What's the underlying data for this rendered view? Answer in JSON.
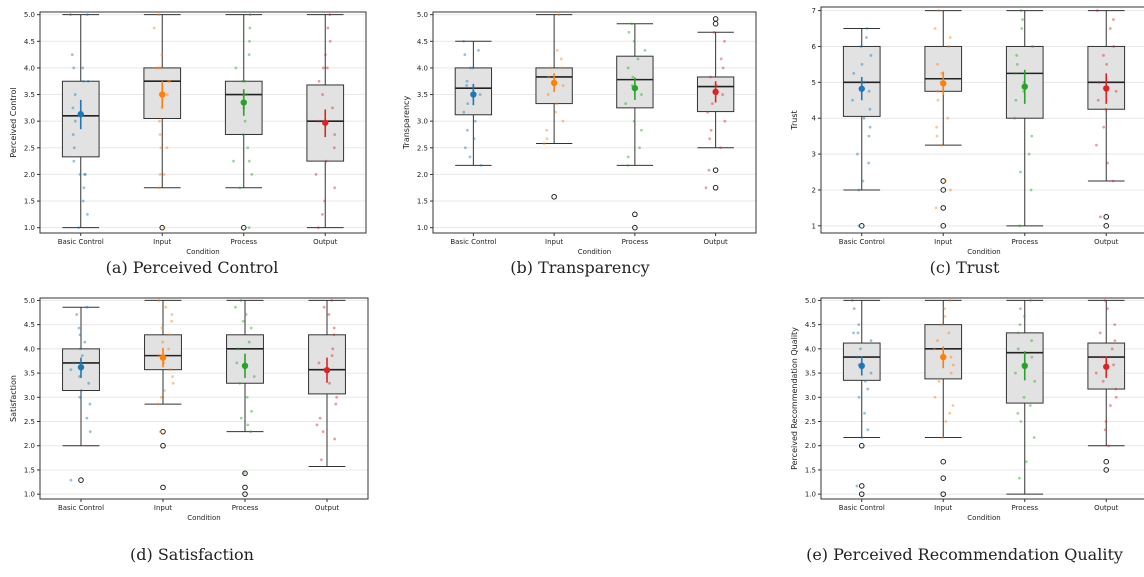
{
  "colors": [
    "#1f77b4",
    "#ff7f0e",
    "#2ca02c",
    "#d62728"
  ],
  "chart_data": [
    {
      "id": "a",
      "type": "box",
      "caption": "(a) Perceived Control",
      "xlabel": "Condition",
      "ylabel": "Perceived Control",
      "ylim": [
        0.9,
        5.05
      ],
      "yticks": [
        "1.0",
        "1.5",
        "2.0",
        "2.5",
        "3.0",
        "3.5",
        "4.0",
        "4.5",
        "5.0"
      ],
      "categories": [
        "Basic Control",
        "Input",
        "Process",
        "Output"
      ],
      "boxes": [
        {
          "min": 1.0,
          "q1": 2.33,
          "median": 3.1,
          "q3": 3.75,
          "max": 5.0,
          "mean": 3.13,
          "ci": [
            2.85,
            3.4
          ],
          "outliers": []
        },
        {
          "min": 1.75,
          "q1": 3.05,
          "median": 3.75,
          "q3": 4.0,
          "max": 5.0,
          "mean": 3.5,
          "ci": [
            3.25,
            3.75
          ],
          "outliers": [
            1.0
          ]
        },
        {
          "min": 1.75,
          "q1": 2.75,
          "median": 3.5,
          "q3": 3.75,
          "max": 5.0,
          "mean": 3.35,
          "ci": [
            3.1,
            3.6
          ],
          "outliers": [
            1.0
          ]
        },
        {
          "min": 1.0,
          "q1": 2.25,
          "median": 3.0,
          "q3": 3.68,
          "max": 5.0,
          "mean": 2.97,
          "ci": [
            2.7,
            3.22
          ],
          "outliers": []
        }
      ],
      "points": [
        [
          5.0,
          5.0,
          4.25,
          4.0,
          4.0,
          3.75,
          3.75,
          3.5,
          3.25,
          3.0,
          2.75,
          2.5,
          2.25,
          2.0,
          2.0,
          2.0,
          1.75,
          1.5,
          1.25,
          1.0
        ],
        [
          5.0,
          4.75,
          4.25,
          4.0,
          4.0,
          4.0,
          3.75,
          3.75,
          3.5,
          3.5,
          3.25,
          3.0,
          2.75,
          2.5,
          2.5,
          2.0,
          2.0,
          1.75,
          1.0
        ],
        [
          5.0,
          4.75,
          4.5,
          4.25,
          4.0,
          3.75,
          3.75,
          3.5,
          3.5,
          3.25,
          3.0,
          2.75,
          2.5,
          2.25,
          2.25,
          2.0,
          1.75,
          1.0
        ],
        [
          5.0,
          4.75,
          4.5,
          4.25,
          4.0,
          4.0,
          3.75,
          3.5,
          3.25,
          3.0,
          2.75,
          2.5,
          2.25,
          2.0,
          1.75,
          1.5,
          1.25,
          1.0
        ]
      ]
    },
    {
      "id": "b",
      "type": "box",
      "caption": "(b) Transparency",
      "xlabel": "Condition",
      "ylabel": "Transparency",
      "ylim": [
        0.9,
        5.05
      ],
      "yticks": [
        "1.0",
        "1.5",
        "2.0",
        "2.5",
        "3.0",
        "3.5",
        "4.0",
        "4.5",
        "5.0"
      ],
      "categories": [
        "Basic Control",
        "Input",
        "Process",
        "Output"
      ],
      "boxes": [
        {
          "min": 2.17,
          "q1": 3.12,
          "median": 3.62,
          "q3": 4.0,
          "max": 4.5,
          "mean": 3.5,
          "ci": [
            3.3,
            3.7
          ],
          "outliers": []
        },
        {
          "min": 2.58,
          "q1": 3.33,
          "median": 3.83,
          "q3": 4.0,
          "max": 5.0,
          "mean": 3.72,
          "ci": [
            3.55,
            3.9
          ],
          "outliers": [
            1.58
          ]
        },
        {
          "min": 2.17,
          "q1": 3.25,
          "median": 3.78,
          "q3": 4.22,
          "max": 4.83,
          "mean": 3.62,
          "ci": [
            3.4,
            3.82
          ],
          "outliers": [
            1.25,
            1.0
          ]
        },
        {
          "min": 2.5,
          "q1": 3.18,
          "median": 3.65,
          "q3": 3.83,
          "max": 4.67,
          "mean": 3.55,
          "ci": [
            3.35,
            3.75
          ],
          "outliers": [
            4.92,
            4.83,
            2.08,
            1.75
          ]
        }
      ],
      "points": [
        [
          4.5,
          4.33,
          4.25,
          4.0,
          4.0,
          3.75,
          3.67,
          3.5,
          3.33,
          3.17,
          3.0,
          2.83,
          2.67,
          2.5,
          2.33,
          2.17
        ],
        [
          5.0,
          4.33,
          4.17,
          4.0,
          4.0,
          3.83,
          3.67,
          3.5,
          3.33,
          3.17,
          3.0,
          2.83,
          2.67,
          2.58
        ],
        [
          4.83,
          4.67,
          4.5,
          4.33,
          4.17,
          4.0,
          3.83,
          3.67,
          3.5,
          3.33,
          3.0,
          2.83,
          2.5,
          2.33,
          2.17
        ],
        [
          4.67,
          4.5,
          4.17,
          4.0,
          3.83,
          3.67,
          3.5,
          3.33,
          3.17,
          3.0,
          2.83,
          2.67,
          2.5,
          2.08,
          1.75
        ]
      ]
    },
    {
      "id": "c",
      "type": "box",
      "caption": "(c) Trust",
      "xlabel": "Condition",
      "ylabel": "Trust",
      "ylim": [
        0.8,
        7.1
      ],
      "yticks": [
        "1",
        "2",
        "3",
        "4",
        "5",
        "6",
        "7"
      ],
      "categories": [
        "Basic Control",
        "Input",
        "Process",
        "Output"
      ],
      "boxes": [
        {
          "min": 2.0,
          "q1": 4.05,
          "median": 5.0,
          "q3": 6.0,
          "max": 6.5,
          "mean": 4.82,
          "ci": [
            4.5,
            5.15
          ],
          "outliers": [
            1.0
          ]
        },
        {
          "min": 3.25,
          "q1": 4.75,
          "median": 5.1,
          "q3": 6.0,
          "max": 7.0,
          "mean": 4.97,
          "ci": [
            4.65,
            5.3
          ],
          "outliers": [
            2.25,
            2.0,
            1.5,
            1.0
          ]
        },
        {
          "min": 1.0,
          "q1": 4.0,
          "median": 5.25,
          "q3": 6.0,
          "max": 7.0,
          "mean": 4.88,
          "ci": [
            4.4,
            5.35
          ],
          "outliers": []
        },
        {
          "min": 2.25,
          "q1": 4.25,
          "median": 5.0,
          "q3": 6.0,
          "max": 7.0,
          "mean": 4.83,
          "ci": [
            4.4,
            5.25
          ],
          "outliers": [
            1.25,
            1.0
          ]
        }
      ],
      "points": [
        [
          6.5,
          6.25,
          6.0,
          5.75,
          5.5,
          5.25,
          5.0,
          4.75,
          4.5,
          4.25,
          4.0,
          3.75,
          3.5,
          3.0,
          2.75,
          2.25,
          2.0,
          1.0
        ],
        [
          7.0,
          6.5,
          6.25,
          6.0,
          5.5,
          5.25,
          5.0,
          4.75,
          4.5,
          4.0,
          3.75,
          3.5,
          3.25,
          2.25,
          2.0,
          1.5
        ],
        [
          7.0,
          6.75,
          6.5,
          6.0,
          5.75,
          5.5,
          5.25,
          5.0,
          4.75,
          4.5,
          4.0,
          3.5,
          3.0,
          2.5,
          2.0,
          1.0
        ],
        [
          7.0,
          6.75,
          6.5,
          6.0,
          5.75,
          5.5,
          5.0,
          4.75,
          4.5,
          4.25,
          3.75,
          3.25,
          2.75,
          2.25,
          1.25
        ]
      ]
    },
    {
      "id": "d",
      "type": "box",
      "caption": "(d) Satisfaction",
      "xlabel": "Condition",
      "ylabel": "Satisfaction",
      "ylim": [
        0.9,
        5.05
      ],
      "yticks": [
        "1.0",
        "1.5",
        "2.0",
        "2.5",
        "3.0",
        "3.5",
        "4.0",
        "4.5",
        "5.0"
      ],
      "categories": [
        "Basic Control",
        "Input",
        "Process",
        "Output"
      ],
      "boxes": [
        {
          "min": 2.0,
          "q1": 3.14,
          "median": 3.71,
          "q3": 4.0,
          "max": 4.86,
          "mean": 3.62,
          "ci": [
            3.4,
            3.82
          ],
          "outliers": [
            1.29
          ]
        },
        {
          "min": 2.86,
          "q1": 3.57,
          "median": 3.86,
          "q3": 4.29,
          "max": 5.0,
          "mean": 3.82,
          "ci": [
            3.62,
            4.02
          ],
          "outliers": [
            2.29,
            2.0,
            1.14
          ]
        },
        {
          "min": 2.29,
          "q1": 3.29,
          "median": 4.0,
          "q3": 4.29,
          "max": 5.0,
          "mean": 3.65,
          "ci": [
            3.4,
            3.9
          ],
          "outliers": [
            1.43,
            1.14,
            1.0
          ]
        },
        {
          "min": 1.57,
          "q1": 3.07,
          "median": 3.57,
          "q3": 4.29,
          "max": 5.0,
          "mean": 3.56,
          "ci": [
            3.3,
            3.82
          ],
          "outliers": []
        }
      ],
      "points": [
        [
          4.86,
          4.71,
          4.43,
          4.29,
          4.14,
          4.0,
          3.86,
          3.71,
          3.57,
          3.43,
          3.29,
          3.14,
          3.0,
          2.86,
          2.57,
          2.29,
          1.29
        ],
        [
          5.0,
          4.86,
          4.71,
          4.57,
          4.43,
          4.29,
          4.14,
          4.0,
          3.86,
          3.71,
          3.57,
          3.43,
          3.29,
          3.14,
          3.0,
          2.86,
          2.29
        ],
        [
          5.0,
          4.86,
          4.71,
          4.57,
          4.43,
          4.14,
          4.0,
          3.71,
          3.43,
          3.29,
          3.0,
          2.71,
          2.57,
          2.43,
          2.29,
          1.43
        ],
        [
          5.0,
          4.86,
          4.71,
          4.43,
          4.29,
          4.0,
          3.86,
          3.71,
          3.57,
          3.29,
          3.0,
          2.86,
          2.57,
          2.43,
          2.29,
          2.14,
          1.71
        ]
      ]
    },
    {
      "id": "e",
      "type": "box",
      "caption": "(e) Perceived Recommendation Quality",
      "xlabel": "Condition",
      "ylabel": "Perceived Recommendation Quality",
      "ylim": [
        0.9,
        5.05
      ],
      "yticks": [
        "1.0",
        "1.5",
        "2.0",
        "2.5",
        "3.0",
        "3.5",
        "4.0",
        "4.5",
        "5.0"
      ],
      "categories": [
        "Basic Control",
        "Input",
        "Process",
        "Output"
      ],
      "boxes": [
        {
          "min": 2.17,
          "q1": 3.35,
          "median": 3.83,
          "q3": 4.12,
          "max": 5.0,
          "mean": 3.65,
          "ci": [
            3.45,
            3.85
          ],
          "outliers": [
            2.0,
            1.17,
            1.0
          ]
        },
        {
          "min": 2.17,
          "q1": 3.38,
          "median": 4.0,
          "q3": 4.5,
          "max": 5.0,
          "mean": 3.83,
          "ci": [
            3.6,
            4.05
          ],
          "outliers": [
            1.67,
            1.33,
            1.0
          ]
        },
        {
          "min": 1.0,
          "q1": 2.88,
          "median": 3.92,
          "q3": 4.33,
          "max": 5.0,
          "mean": 3.65,
          "ci": [
            3.35,
            3.95
          ],
          "outliers": []
        },
        {
          "min": 2.0,
          "q1": 3.17,
          "median": 3.83,
          "q3": 4.12,
          "max": 5.0,
          "mean": 3.63,
          "ci": [
            3.4,
            3.85
          ],
          "outliers": [
            1.67,
            1.5
          ]
        }
      ],
      "points": [
        [
          5.0,
          4.83,
          4.5,
          4.33,
          4.33,
          4.17,
          4.0,
          3.83,
          3.67,
          3.5,
          3.33,
          3.17,
          3.0,
          2.67,
          2.33,
          2.17,
          1.17
        ],
        [
          5.0,
          4.83,
          4.67,
          4.5,
          4.33,
          4.17,
          4.0,
          3.83,
          3.67,
          3.5,
          3.33,
          3.0,
          2.83,
          2.67,
          2.5,
          2.17
        ],
        [
          5.0,
          4.83,
          4.67,
          4.5,
          4.33,
          4.17,
          4.0,
          3.83,
          3.5,
          3.33,
          3.0,
          2.83,
          2.67,
          2.5,
          2.17,
          1.67,
          1.33
        ],
        [
          5.0,
          4.83,
          4.5,
          4.33,
          4.17,
          4.0,
          3.83,
          3.67,
          3.5,
          3.33,
          3.17,
          3.0,
          2.83,
          2.5,
          2.33,
          2.0
        ]
      ]
    }
  ]
}
